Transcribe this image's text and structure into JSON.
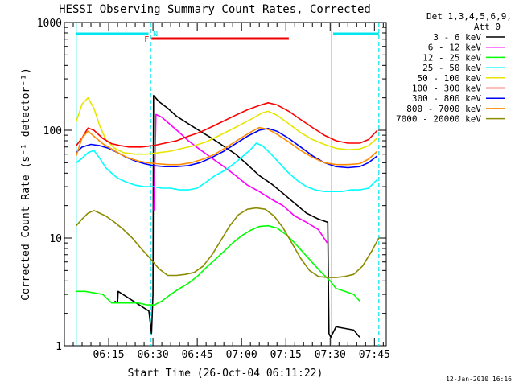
{
  "chart_data": {
    "type": "line",
    "title": "HESSI Observing Summary Count Rates, Corrected",
    "xlabel": "Start Time (26-Oct-04 06:11:22)",
    "ylabel": "Corrected Count Rate (s⁻¹ detector⁻¹)",
    "ylog": true,
    "ylim": [
      1,
      1000
    ],
    "xlim_minutes": [
      360,
      469
    ],
    "x_ticks": [
      "06:15",
      "06:30",
      "06:45",
      "07:00",
      "07:15",
      "07:30",
      "07:45"
    ],
    "x_tick_minutes": [
      375,
      390,
      405,
      420,
      435,
      450,
      465
    ],
    "y_ticks": [
      "1",
      "10",
      "100",
      "1000"
    ],
    "y_tick_values": [
      1,
      10,
      100,
      1000
    ],
    "legend_header": [
      "Det 1,3,4,5,6,9,",
      "Att 0"
    ],
    "legend_position": "right",
    "footer": "12-Jan-2010 16:16",
    "markers": {
      "F_label": "F",
      "N_label": "N",
      "flare_bar_start": 389.5,
      "flare_bar_end": 436,
      "night_bar_1": [
        364,
        388.5
      ],
      "night_bar_2": [
        451,
        466.5
      ],
      "day_lines": [
        364,
        450.5
      ],
      "night_lines": [
        389.2,
        466.5
      ]
    },
    "series": [
      {
        "name": "3 - 6 keV",
        "color": "#000000",
        "x": [
          377,
          378,
          378.2,
          388.6,
          389.5,
          390,
          390.2,
          392,
          395,
          398,
          402,
          406,
          410,
          414,
          418,
          422,
          426,
          430,
          434,
          438,
          442,
          446,
          449.2,
          449.6,
          450.2,
          452,
          458,
          460
        ],
        "y": [
          2.6,
          2.5,
          3.2,
          2.1,
          1.3,
          3,
          210,
          185,
          160,
          135,
          115,
          98,
          84,
          71,
          60,
          48,
          38,
          32,
          26,
          21,
          17,
          15,
          14,
          1.3,
          1.2,
          1.5,
          1.4,
          1.2
        ]
      },
      {
        "name": "6 - 12 keV",
        "color": "#ff00ff",
        "x": [
          390.3,
          391,
          393,
          396,
          399,
          402,
          406,
          410,
          414,
          418,
          422,
          426,
          430,
          434,
          438,
          442,
          446,
          449
        ],
        "y": [
          18,
          140,
          132,
          112,
          95,
          80,
          66,
          55,
          46,
          38,
          31,
          27,
          23,
          20,
          16,
          14,
          12,
          9
        ]
      },
      {
        "name": "12 - 25 keV",
        "color": "#00ff00",
        "x": [
          364,
          367,
          370,
          373,
          376,
          379,
          382,
          385,
          388,
          390.5,
          393,
          396,
          399,
          402,
          405,
          408,
          411,
          414,
          417,
          420,
          423,
          426,
          429,
          432,
          435,
          438,
          441,
          444,
          447,
          450,
          452,
          455,
          458,
          460
        ],
        "y": [
          3.2,
          3.2,
          3.1,
          3.0,
          2.5,
          2.5,
          2.5,
          2.5,
          2.4,
          2.4,
          2.6,
          3.0,
          3.4,
          3.8,
          4.4,
          5.3,
          6.3,
          7.5,
          9,
          10.5,
          11.8,
          12.8,
          13.0,
          12.4,
          10.8,
          9.0,
          7.3,
          5.9,
          4.8,
          4.0,
          3.4,
          3.2,
          3.0,
          2.6
        ]
      },
      {
        "name": "25 - 50 keV",
        "color": "#00ffff",
        "x": [
          364,
          366,
          368,
          370,
          372,
          374,
          376,
          378,
          381,
          384,
          387,
          390,
          393,
          396,
          399,
          402,
          405,
          408,
          411,
          414,
          417,
          420,
          423,
          425,
          427,
          430,
          433,
          436,
          439,
          442,
          445,
          448,
          451,
          454,
          457,
          460,
          463,
          466
        ],
        "y": [
          50,
          55,
          62,
          65,
          55,
          45,
          40,
          36,
          33,
          31,
          30,
          30,
          29,
          29,
          28,
          28,
          29,
          33,
          38,
          42,
          48,
          56,
          66,
          76,
          72,
          60,
          49,
          40,
          34,
          30,
          28,
          27,
          27,
          27,
          28,
          28,
          29,
          35
        ]
      },
      {
        "name": "50 - 100 keV",
        "color": "#e6e600",
        "x": [
          364,
          366,
          368,
          370,
          372,
          374,
          377,
          380,
          384,
          388,
          392,
          396,
          400,
          404,
          408,
          412,
          416,
          420,
          424,
          427,
          429,
          432,
          436,
          440,
          444,
          448,
          452,
          456,
          460,
          463,
          466
        ],
        "y": [
          120,
          175,
          200,
          160,
          110,
          82,
          68,
          62,
          60,
          60,
          62,
          64,
          68,
          72,
          78,
          88,
          100,
          114,
          130,
          145,
          150,
          138,
          115,
          95,
          82,
          74,
          68,
          66,
          67,
          72,
          85
        ]
      },
      {
        "name": "100 - 300 keV",
        "color": "#ff0000",
        "x": [
          364,
          366,
          368,
          370,
          373,
          376,
          379,
          382,
          386,
          390,
          394,
          398,
          402,
          406,
          410,
          414,
          418,
          422,
          426,
          429,
          432,
          436,
          440,
          444,
          448,
          452,
          456,
          460,
          463,
          466
        ],
        "y": [
          72,
          85,
          105,
          100,
          84,
          75,
          72,
          70,
          70,
          72,
          76,
          80,
          88,
          96,
          108,
          122,
          138,
          155,
          170,
          180,
          172,
          150,
          126,
          106,
          90,
          80,
          76,
          76,
          82,
          100
        ]
      },
      {
        "name": "300 - 800 keV",
        "color": "#0000ff",
        "x": [
          364,
          366,
          369,
          372,
          375,
          378,
          381,
          384,
          387,
          390,
          394,
          398,
          402,
          406,
          410,
          414,
          418,
          422,
          426,
          429,
          432,
          436,
          440,
          444,
          448,
          452,
          456,
          460,
          463,
          466
        ],
        "y": [
          62,
          70,
          74,
          72,
          68,
          62,
          56,
          52,
          49,
          47,
          46,
          46,
          47,
          50,
          56,
          64,
          75,
          88,
          100,
          104,
          98,
          84,
          70,
          58,
          50,
          46,
          45,
          46,
          50,
          58
        ]
      },
      {
        "name": "800 - 7000 keV",
        "color": "#ff8c00",
        "x": [
          364,
          366,
          368,
          370,
          373,
          376,
          379,
          382,
          385,
          388,
          391,
          395,
          399,
          403,
          407,
          411,
          415,
          419,
          423,
          426,
          429,
          432,
          436,
          440,
          444,
          448,
          452,
          456,
          460,
          463,
          466
        ],
        "y": [
          58,
          85,
          98,
          88,
          75,
          67,
          60,
          55,
          52,
          50,
          49,
          48,
          48,
          50,
          54,
          60,
          70,
          82,
          96,
          106,
          102,
          92,
          78,
          65,
          56,
          50,
          48,
          48,
          49,
          54,
          64
        ]
      },
      {
        "name": "7000 - 20000 keV",
        "color": "#8b8b00",
        "x": [
          364,
          366,
          368,
          370,
          372,
          374,
          377,
          380,
          383,
          386,
          389,
          392,
          395,
          398,
          401,
          404,
          407,
          410,
          413,
          416,
          419,
          422,
          425,
          428,
          431,
          434,
          437,
          440,
          443,
          446,
          449,
          452,
          455,
          458,
          461,
          464,
          466.5
        ],
        "y": [
          13,
          15,
          17,
          18,
          17,
          16,
          14,
          12,
          10,
          8,
          6.5,
          5.2,
          4.5,
          4.5,
          4.6,
          4.8,
          5.5,
          7,
          9.5,
          13,
          16.5,
          18.5,
          19,
          18.5,
          16,
          12.5,
          9,
          6.5,
          5,
          4.4,
          4.3,
          4.3,
          4.4,
          4.6,
          5.5,
          7.5,
          10
        ]
      }
    ]
  }
}
